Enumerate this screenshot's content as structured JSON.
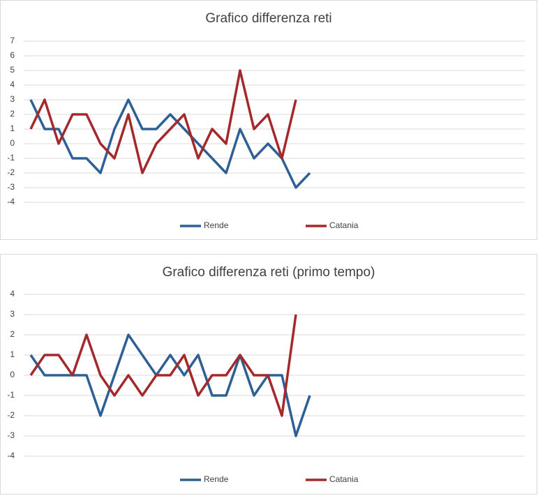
{
  "chart_data": [
    {
      "type": "line",
      "title": "Grafico differenza reti",
      "categories": [
        null,
        null,
        null,
        null,
        null,
        null,
        null,
        null,
        null,
        null,
        null,
        null,
        null,
        null,
        null,
        null,
        null,
        null,
        null,
        null,
        null,
        null,
        null,
        null,
        null,
        null,
        null,
        null,
        null,
        null,
        null,
        null,
        null,
        null,
        null,
        null
      ],
      "series": [
        {
          "name": "Rende",
          "color": "#2e6096",
          "values": [
            3,
            1,
            1,
            -1,
            -1,
            -2,
            1,
            3,
            1,
            1,
            2,
            1,
            0,
            -1,
            -2,
            1,
            -1,
            0,
            -1,
            -3,
            -2,
            null,
            null,
            null,
            null,
            null,
            null,
            null,
            null,
            null,
            null,
            null,
            null,
            null,
            null,
            null
          ]
        },
        {
          "name": "Catania",
          "color": "#a3292b",
          "values": [
            1,
            3,
            0,
            2,
            2,
            0,
            -1,
            2,
            -2,
            0,
            1,
            2,
            -1,
            1,
            0,
            5,
            1,
            2,
            -1,
            3,
            null,
            null,
            null,
            null,
            null,
            null,
            null,
            null,
            null,
            null,
            null,
            null,
            null,
            null,
            null,
            null
          ]
        }
      ],
      "ylim": [
        -4,
        7
      ],
      "yticks": [
        -4,
        -3,
        -2,
        -1,
        0,
        1,
        2,
        3,
        4,
        5,
        6,
        7
      ],
      "grid": true,
      "legend": "bottom"
    },
    {
      "type": "line",
      "title": "Grafico differenza reti (primo tempo)",
      "categories": [
        null,
        null,
        null,
        null,
        null,
        null,
        null,
        null,
        null,
        null,
        null,
        null,
        null,
        null,
        null,
        null,
        null,
        null,
        null,
        null,
        null,
        null,
        null,
        null,
        null,
        null,
        null,
        null,
        null,
        null,
        null,
        null,
        null,
        null,
        null,
        null
      ],
      "series": [
        {
          "name": "Rende",
          "color": "#2e6096",
          "values": [
            1,
            0,
            0,
            0,
            0,
            -2,
            0,
            2,
            1,
            0,
            1,
            0,
            1,
            -1,
            -1,
            1,
            -1,
            0,
            0,
            -3,
            -1,
            null,
            null,
            null,
            null,
            null,
            null,
            null,
            null,
            null,
            null,
            null,
            null,
            null,
            null,
            null
          ]
        },
        {
          "name": "Catania",
          "color": "#a3292b",
          "values": [
            0,
            1,
            1,
            0,
            2,
            0,
            -1,
            0,
            -1,
            0,
            0,
            1,
            -1,
            0,
            0,
            1,
            0,
            0,
            -2,
            3,
            null,
            null,
            null,
            null,
            null,
            null,
            null,
            null,
            null,
            null,
            null,
            null,
            null,
            null,
            null,
            null
          ]
        }
      ],
      "ylim": [
        -4,
        4
      ],
      "yticks": [
        -4,
        -3,
        -2,
        -1,
        0,
        1,
        2,
        3,
        4
      ],
      "grid": true,
      "legend": "bottom"
    }
  ]
}
